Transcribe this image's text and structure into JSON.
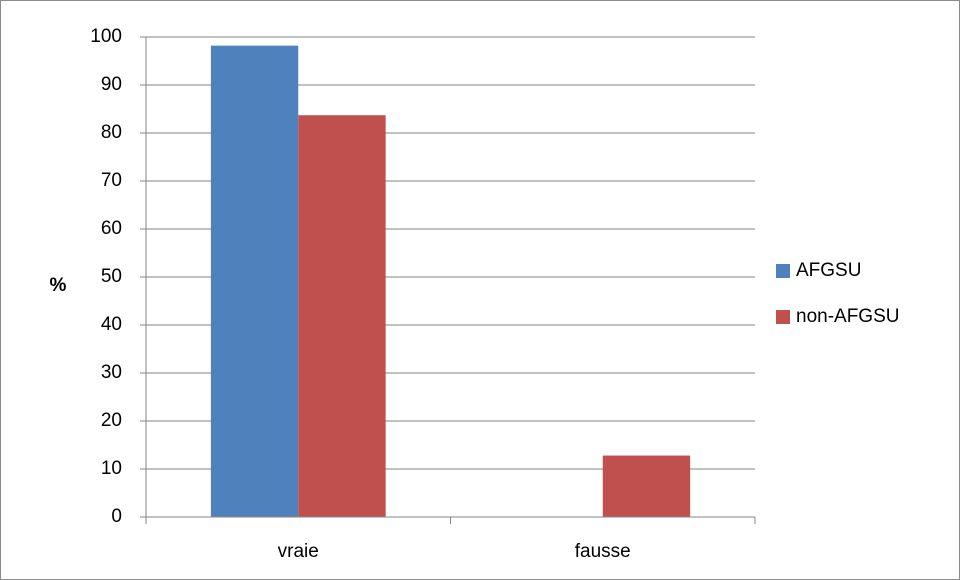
{
  "chart_data": {
    "type": "bar",
    "title": "",
    "xlabel": "",
    "ylabel": "%",
    "categories": [
      "vraie",
      "fausse"
    ],
    "series": [
      {
        "name": "AFGSU",
        "values": [
          98.2,
          0
        ],
        "color": "#4f81bd"
      },
      {
        "name": "non-AFGSU",
        "values": [
          83.7,
          12.8
        ],
        "color": "#c0504d"
      }
    ],
    "ylim": [
      0,
      100
    ],
    "yticks": [
      0,
      10,
      20,
      30,
      40,
      50,
      60,
      70,
      80,
      90,
      100
    ],
    "grid": true,
    "legend_position": "right"
  }
}
